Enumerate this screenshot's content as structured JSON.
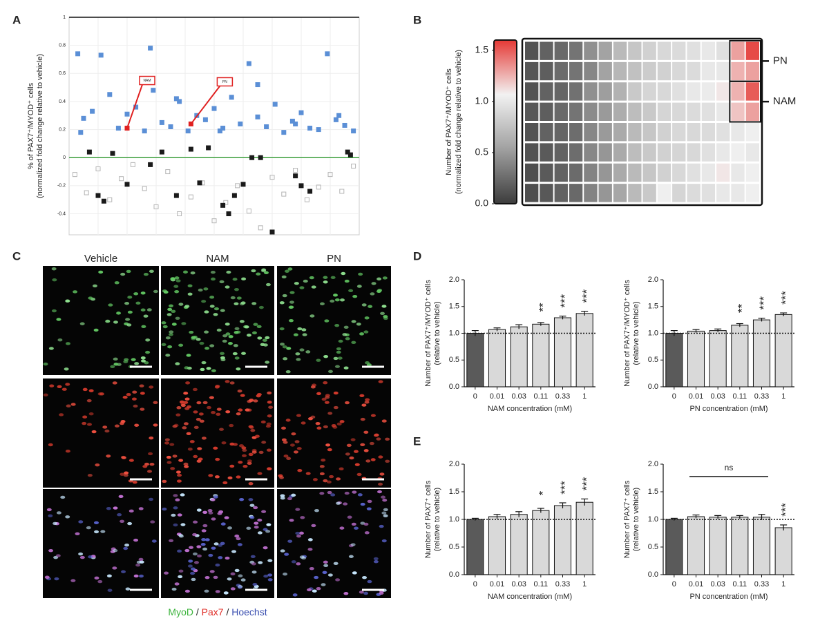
{
  "panel_labels": [
    "A",
    "B",
    "C",
    "D",
    "E"
  ],
  "image_panel": {
    "columns": [
      "Vehicle",
      "NAM",
      "PN"
    ],
    "legend": [
      {
        "text": "MyoD",
        "color": "#3cb43c"
      },
      {
        "text": "Pax7",
        "color": "#e0302a"
      },
      {
        "text": "Hoechst",
        "color": "#3a4fb0"
      }
    ],
    "separator": " / "
  },
  "chart_data": [
    {
      "type": "scatter",
      "ylabel": [
        "% of PAX7⁺/MYOD⁺ cells",
        "(normalized fold change relative to vehicle)"
      ],
      "xlim": [
        0,
        100
      ],
      "ylim": [
        -0.55,
        1
      ],
      "yticks": [
        -0.4,
        -0.2,
        0,
        0.2,
        0.4,
        0.6,
        0.8,
        1
      ],
      "hline": 0,
      "hline_color": "#3a9e3a",
      "grid": true,
      "series": [
        {
          "color": "#b4b4b4",
          "marker": "hollow",
          "x": [
            2,
            6,
            10,
            14,
            18,
            22,
            26,
            30,
            34,
            38,
            42,
            46,
            50,
            54,
            58,
            62,
            66,
            70,
            74,
            78,
            82,
            86,
            90,
            94,
            98
          ],
          "values": [
            -0.12,
            -0.25,
            -0.08,
            -0.3,
            -0.15,
            -0.05,
            -0.22,
            -0.35,
            -0.1,
            -0.4,
            -0.28,
            -0.18,
            -0.45,
            -0.32,
            -0.2,
            -0.38,
            -0.5,
            -0.14,
            -0.26,
            -0.09,
            -0.3,
            -0.21,
            -0.12,
            -0.24,
            -0.06
          ]
        },
        {
          "color": "#5b8fd6",
          "marker": "filled",
          "x": [
            3,
            5,
            8,
            11,
            14,
            17,
            20,
            23,
            26,
            29,
            32,
            35,
            38,
            41,
            44,
            47,
            50,
            53,
            56,
            59,
            62,
            65,
            68,
            71,
            74,
            77,
            80,
            83,
            86,
            89,
            92,
            95,
            98,
            4,
            28,
            37,
            52,
            65,
            78,
            93
          ],
          "values": [
            0.74,
            0.28,
            0.33,
            0.73,
            0.45,
            0.21,
            0.31,
            0.36,
            0.19,
            0.48,
            0.25,
            0.22,
            0.4,
            0.19,
            0.3,
            0.27,
            0.35,
            0.21,
            0.43,
            0.24,
            0.67,
            0.29,
            0.22,
            0.38,
            0.18,
            0.26,
            0.32,
            0.21,
            0.2,
            0.74,
            0.27,
            0.23,
            0.19,
            0.18,
            0.78,
            0.42,
            0.19,
            0.52,
            0.24,
            0.3
          ]
        },
        {
          "color": "#1a1a1a",
          "marker": "filled",
          "x": [
            7,
            10,
            12,
            15,
            20,
            28,
            32,
            37,
            42,
            45,
            48,
            53,
            55,
            57,
            60,
            63,
            66,
            70,
            78,
            80,
            83,
            96,
            97
          ],
          "values": [
            0.04,
            -0.27,
            -0.31,
            0.03,
            -0.19,
            -0.05,
            0.04,
            -0.27,
            0.06,
            -0.18,
            0.07,
            -0.34,
            -0.4,
            -0.27,
            -0.19,
            0,
            0,
            -0.53,
            -0.13,
            -0.2,
            -0.24,
            0.04,
            0.02
          ]
        },
        {
          "color": "#e02020",
          "marker": "filled",
          "x": [
            20,
            42
          ],
          "values": [
            0.21,
            0.24
          ],
          "labels": [
            "NAM",
            "PN"
          ]
        }
      ]
    },
    {
      "type": "heatmap",
      "ylabel": [
        "Number of PAX7⁺/MYOD⁺ cells",
        "(normalized fold change relative to vehicle)"
      ],
      "zlim": [
        0,
        1.6
      ],
      "zticks": [
        {
          "value": 0,
          "label": "0.0"
        },
        0.5,
        {
          "value": 1,
          "label": "1.0"
        },
        1.5
      ],
      "colors": [
        "#3c3c3c",
        "#a0a0a0",
        "#f2f2f2",
        "#e53935"
      ],
      "matrix": [
        [
          0.12,
          0.2,
          0.24,
          0.3,
          0.45,
          0.55,
          0.7,
          0.78,
          0.85,
          0.9,
          0.92,
          0.95,
          1.0,
          0.95,
          1.3,
          1.55
        ],
        [
          0.14,
          0.18,
          0.25,
          0.3,
          0.4,
          0.55,
          0.68,
          0.75,
          0.82,
          0.85,
          0.9,
          0.92,
          1.0,
          1.0,
          1.25,
          1.3
        ],
        [
          0.12,
          0.2,
          0.22,
          0.28,
          0.45,
          0.52,
          0.65,
          0.8,
          0.88,
          0.9,
          0.95,
          1.0,
          1.02,
          1.1,
          1.25,
          1.5
        ],
        [
          0.15,
          0.18,
          0.24,
          0.3,
          0.42,
          0.5,
          0.62,
          0.72,
          0.8,
          0.88,
          0.9,
          0.92,
          0.95,
          1.0,
          1.2,
          1.3
        ],
        [
          0.12,
          0.2,
          0.22,
          0.26,
          0.4,
          0.5,
          0.6,
          0.7,
          0.78,
          0.85,
          0.9,
          0.9,
          0.92,
          0.95,
          1.0,
          1.05
        ],
        [
          0.12,
          0.16,
          0.2,
          0.26,
          0.4,
          0.48,
          0.6,
          0.72,
          0.8,
          0.85,
          0.88,
          0.9,
          0.95,
          1.0,
          1.05,
          1.0
        ],
        [
          0.1,
          0.16,
          0.2,
          0.25,
          0.38,
          0.48,
          0.6,
          0.7,
          0.78,
          0.85,
          0.9,
          0.95,
          1.0,
          1.1,
          1.0,
          1.05
        ],
        [
          0.1,
          0.15,
          0.2,
          0.24,
          0.38,
          0.48,
          0.58,
          0.7,
          0.8,
          1.05,
          0.88,
          0.92,
          0.95,
          1.0,
          1.0,
          1.05
        ]
      ],
      "highlights": [
        {
          "label": "PN",
          "rows": [
            0,
            1
          ],
          "cols": [
            14,
            15
          ]
        },
        {
          "label": "NAM",
          "rows": [
            2,
            3
          ],
          "cols": [
            14,
            15
          ]
        }
      ]
    },
    {
      "type": "bar",
      "ylabel": [
        "Number of PAX7⁺/MYOD⁺ cells",
        "(relative to vehicle)"
      ],
      "xlabel": "NAM concentration (mM)",
      "categories": [
        "0",
        "0.01",
        "0.03",
        "0.11",
        "0.33",
        "1"
      ],
      "values": [
        1.0,
        1.07,
        1.12,
        1.17,
        1.29,
        1.37
      ],
      "errors": [
        0.05,
        0.03,
        0.04,
        0.03,
        0.03,
        0.04
      ],
      "colors": [
        "#5a5a5a",
        "#d9d9d9",
        "#d9d9d9",
        "#d9d9d9",
        "#d9d9d9",
        "#d9d9d9"
      ],
      "significance": [
        null,
        null,
        null,
        "**",
        "***",
        "***"
      ],
      "ylim": [
        0,
        2
      ],
      "yticks": [
        {
          "value": 0,
          "label": "0.0"
        },
        0.5,
        {
          "value": 1,
          "label": "1.0"
        },
        1.5,
        {
          "value": 2,
          "label": "2.0"
        }
      ],
      "hline": 1
    },
    {
      "type": "bar",
      "ylabel": [
        "Number of PAX7⁺/MYOD⁺ cells",
        "(relative to vehicle)"
      ],
      "xlabel": "PN concentration (mM)",
      "categories": [
        "0",
        "0.01",
        "0.03",
        "0.11",
        "0.33",
        "1"
      ],
      "values": [
        1.0,
        1.04,
        1.05,
        1.15,
        1.25,
        1.35
      ],
      "errors": [
        0.05,
        0.03,
        0.03,
        0.03,
        0.03,
        0.03
      ],
      "colors": [
        "#5a5a5a",
        "#d9d9d9",
        "#d9d9d9",
        "#d9d9d9",
        "#d9d9d9",
        "#d9d9d9"
      ],
      "significance": [
        null,
        null,
        null,
        "**",
        "***",
        "***"
      ],
      "ylim": [
        0,
        2
      ],
      "yticks": [
        {
          "value": 0,
          "label": "0.0"
        },
        0.5,
        {
          "value": 1,
          "label": "1.0"
        },
        1.5,
        {
          "value": 2,
          "label": "2.0"
        }
      ],
      "hline": 1
    },
    {
      "type": "bar",
      "ylabel": [
        "Number of PAX7⁺ cells",
        "(relative to vehicle)"
      ],
      "xlabel": "NAM concentration (mM)",
      "categories": [
        "0",
        "0.01",
        "0.03",
        "0.11",
        "0.33",
        "1"
      ],
      "values": [
        1.0,
        1.05,
        1.09,
        1.16,
        1.25,
        1.31
      ],
      "errors": [
        0.02,
        0.04,
        0.05,
        0.04,
        0.05,
        0.06
      ],
      "colors": [
        "#5a5a5a",
        "#d9d9d9",
        "#d9d9d9",
        "#d9d9d9",
        "#d9d9d9",
        "#d9d9d9"
      ],
      "significance": [
        null,
        null,
        null,
        "*",
        "***",
        "***"
      ],
      "ylim": [
        0,
        2
      ],
      "yticks": [
        {
          "value": 0,
          "label": "0.0"
        },
        0.5,
        {
          "value": 1,
          "label": "1.0"
        },
        1.5,
        {
          "value": 2,
          "label": "2.0"
        }
      ],
      "hline": 1
    },
    {
      "type": "bar",
      "ylabel": [
        "Number of PAX7⁺ cells",
        "(relative to vehicle)"
      ],
      "xlabel": "PN concentration (mM)",
      "categories": [
        "0",
        "0.01",
        "0.03",
        "0.11",
        "0.33",
        "1"
      ],
      "values": [
        1.0,
        1.05,
        1.04,
        1.04,
        1.04,
        0.85
      ],
      "errors": [
        0.02,
        0.03,
        0.03,
        0.03,
        0.05,
        0.05
      ],
      "colors": [
        "#5a5a5a",
        "#d9d9d9",
        "#d9d9d9",
        "#d9d9d9",
        "#d9d9d9",
        "#d9d9d9"
      ],
      "significance": [
        null,
        null,
        null,
        null,
        null,
        "***"
      ],
      "bracket": {
        "label": "ns",
        "from": 1,
        "to": 4
      },
      "ylim": [
        0,
        2
      ],
      "yticks": [
        {
          "value": 0,
          "label": "0.0"
        },
        0.5,
        {
          "value": 1,
          "label": "1.0"
        },
        1.5,
        {
          "value": 2,
          "label": "2.0"
        }
      ],
      "hline": 1
    }
  ]
}
